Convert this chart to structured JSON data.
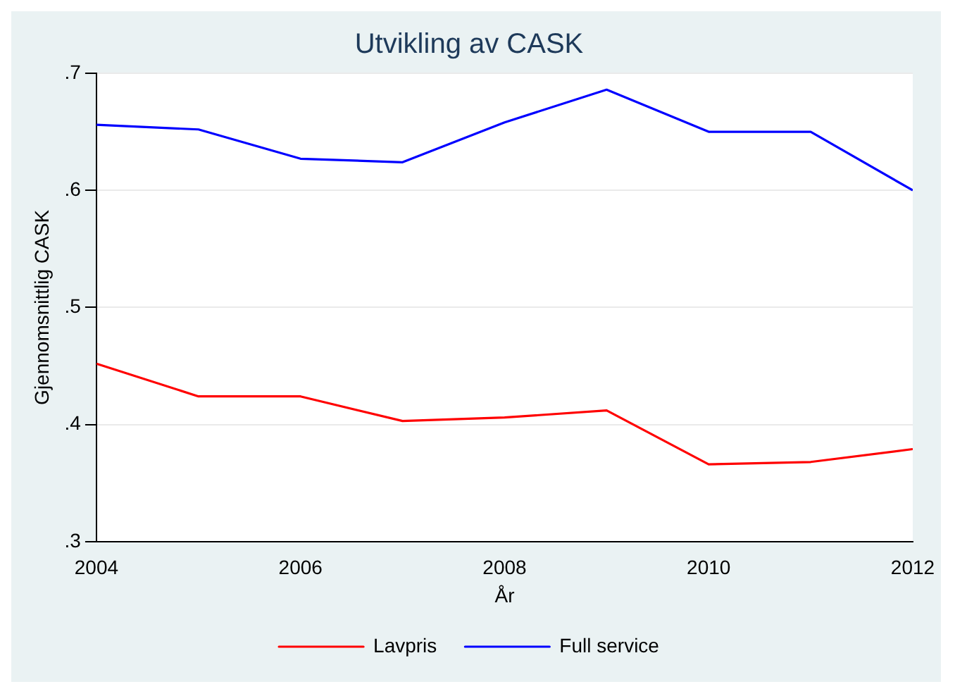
{
  "chart_data": {
    "type": "line",
    "title": "Utvikling av CASK",
    "xlabel": "År",
    "ylabel": "Gjennomsnittlig CASK",
    "x": [
      2004,
      2005,
      2006,
      2007,
      2008,
      2009,
      2010,
      2011,
      2012
    ],
    "series": [
      {
        "name": "Lavpris",
        "color": "#ff0000",
        "values": [
          0.452,
          0.424,
          0.424,
          0.403,
          0.406,
          0.412,
          0.366,
          0.368,
          0.379
        ]
      },
      {
        "name": "Full service",
        "color": "#0000ff",
        "values": [
          0.656,
          0.652,
          0.627,
          0.624,
          0.658,
          0.686,
          0.65,
          0.65,
          0.6
        ]
      }
    ],
    "xlim": [
      2004,
      2012
    ],
    "xticks": [
      2004,
      2006,
      2008,
      2010,
      2012
    ],
    "ylim": [
      0.3,
      0.7
    ],
    "yticks": [
      {
        "value": 0.3,
        "label": ".3"
      },
      {
        "value": 0.4,
        "label": ".4"
      },
      {
        "value": 0.5,
        "label": ".5"
      },
      {
        "value": 0.6,
        "label": ".6"
      },
      {
        "value": 0.7,
        "label": ".7"
      }
    ],
    "grid": "y",
    "legend": "bottom",
    "marker": "none",
    "line_style": "solid"
  }
}
